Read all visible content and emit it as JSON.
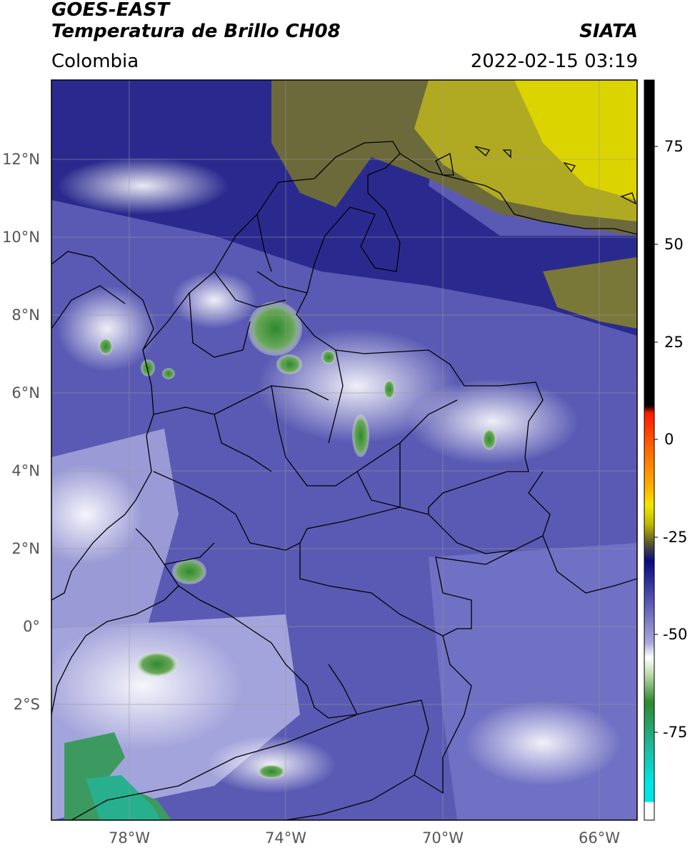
{
  "header": {
    "title_line1": "GOES-EAST",
    "title_line2": "Temperatura de Brillo CH08",
    "organization": "SIATA",
    "region": "Colombia",
    "datetime": "2022-02-15 03:19"
  },
  "map": {
    "lat_ticks": [
      "12°N",
      "10°N",
      "8°N",
      "6°N",
      "4°N",
      "2°N",
      "0°",
      "2°S"
    ],
    "lon_ticks": [
      "78°W",
      "74°W",
      "70°W",
      "66°W"
    ],
    "gridlines": true
  },
  "colorbar": {
    "ticks": [
      "75",
      "50",
      "25",
      "0",
      "-25",
      "-50",
      "-75"
    ],
    "colors": {
      "black": "#000000",
      "red": "#ff1a00",
      "orange": "#ff9a00",
      "yellow": "#f0e800",
      "olive": "#5a5a2a",
      "navy": "#0a0a80",
      "lavender": "#8c8cd0",
      "white": "#ffffff",
      "green": "#2e8a2e",
      "teal": "#20b89a",
      "cyan": "#00e6e6"
    }
  }
}
